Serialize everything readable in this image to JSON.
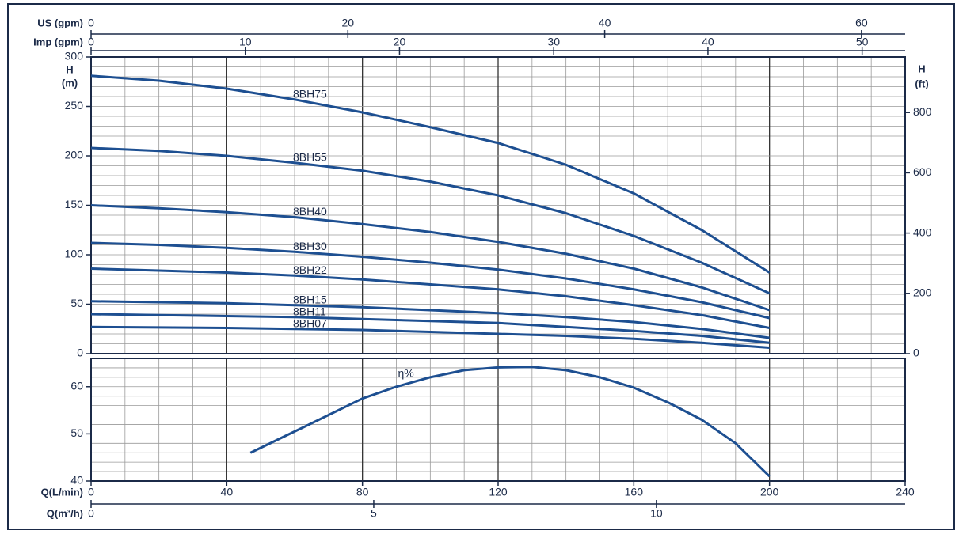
{
  "chart_data": [
    {
      "type": "line",
      "ylabel": [
        "H",
        "(m)"
      ],
      "y2label": [
        "H",
        "(ft)"
      ],
      "x": [
        0,
        20,
        40,
        60,
        80,
        100,
        120,
        140,
        160,
        180,
        200
      ],
      "series": [
        {
          "name": "8BH75",
          "color": "#1d4f91",
          "values": [
            281,
            276,
            268,
            257,
            244,
            229,
            213,
            191,
            162,
            125,
            82
          ]
        },
        {
          "name": "8BH55",
          "color": "#1d4f91",
          "values": [
            208,
            205,
            200,
            193,
            185,
            174,
            160,
            142,
            119,
            92,
            61
          ]
        },
        {
          "name": "8BH40",
          "color": "#1d4f91",
          "values": [
            150,
            147,
            143,
            138,
            131,
            123,
            113,
            101,
            86,
            67,
            44
          ]
        },
        {
          "name": "8BH30",
          "color": "#1d4f91",
          "values": [
            112,
            110,
            107,
            103,
            98,
            92,
            85,
            76,
            65,
            52,
            36
          ]
        },
        {
          "name": "8BH22",
          "color": "#1d4f91",
          "values": [
            86,
            84,
            82,
            79,
            75,
            70,
            65,
            58,
            49,
            39,
            26
          ]
        },
        {
          "name": "8BH15",
          "color": "#1d4f91",
          "values": [
            53,
            52,
            51,
            49,
            47,
            44,
            41,
            37,
            32,
            25,
            16
          ]
        },
        {
          "name": "8BH11",
          "color": "#1d4f91",
          "values": [
            40,
            39,
            38,
            37,
            35,
            33,
            31,
            27,
            23,
            18,
            11
          ]
        },
        {
          "name": "8BH07",
          "color": "#1d4f91",
          "values": [
            27,
            26.5,
            26,
            25,
            24,
            22,
            20,
            18,
            15,
            11,
            6
          ]
        }
      ],
      "xlim": [
        0,
        240
      ],
      "xticks": [
        0,
        40,
        80,
        120,
        160,
        200,
        240
      ],
      "minor_xticks": [
        10,
        20,
        30,
        50,
        60,
        70,
        90,
        100,
        110,
        130,
        140,
        150,
        170,
        180,
        190,
        210,
        220,
        230
      ],
      "ylim": [
        0,
        300
      ],
      "yticks": [
        0,
        50,
        100,
        150,
        200,
        250,
        300
      ],
      "minor_yticks": [
        10,
        20,
        30,
        40,
        60,
        70,
        80,
        90,
        110,
        120,
        130,
        140,
        160,
        170,
        180,
        190,
        210,
        220,
        230,
        240,
        260,
        270,
        280,
        290
      ],
      "y2lim": [
        0,
        984.3
      ],
      "y2ticks": [
        0,
        200,
        400,
        600,
        800
      ],
      "x2": {
        "label": "US (gpm)",
        "lim": [
          0,
          63.4
        ],
        "ticks": [
          0,
          20,
          40,
          60
        ]
      },
      "x3": {
        "label": "Imp (gpm)",
        "lim": [
          0,
          52.79
        ],
        "ticks": [
          0,
          10,
          20,
          30,
          40,
          50
        ]
      },
      "grid": true
    },
    {
      "type": "line",
      "xlabel": "Q(L/min)",
      "x": [
        47,
        60,
        80,
        90,
        100,
        110,
        120,
        130,
        140,
        150,
        160,
        170,
        180,
        190,
        200
      ],
      "series": [
        {
          "name": "η%",
          "color": "#1d4f91",
          "values": [
            46,
            50.5,
            57.5,
            60,
            62,
            63.5,
            64.1,
            64.2,
            63.5,
            62,
            59.8,
            56.7,
            53,
            48,
            41
          ]
        }
      ],
      "xlim": [
        0,
        240
      ],
      "xticks": [
        0,
        40,
        80,
        120,
        160,
        200,
        240
      ],
      "minor_xticks": [
        10,
        20,
        30,
        50,
        60,
        70,
        90,
        100,
        110,
        130,
        140,
        150,
        170,
        180,
        190,
        210,
        220,
        230
      ],
      "ylim": [
        40,
        66
      ],
      "yticks": [
        40,
        50,
        60
      ],
      "minor_yticks": [
        42,
        44,
        46,
        48,
        52,
        54,
        56,
        58,
        62,
        64
      ],
      "x2": {
        "label": "Q(m³/h)",
        "lim": [
          0,
          14.4
        ],
        "ticks": [
          0,
          5,
          10
        ]
      },
      "grid": true
    }
  ]
}
